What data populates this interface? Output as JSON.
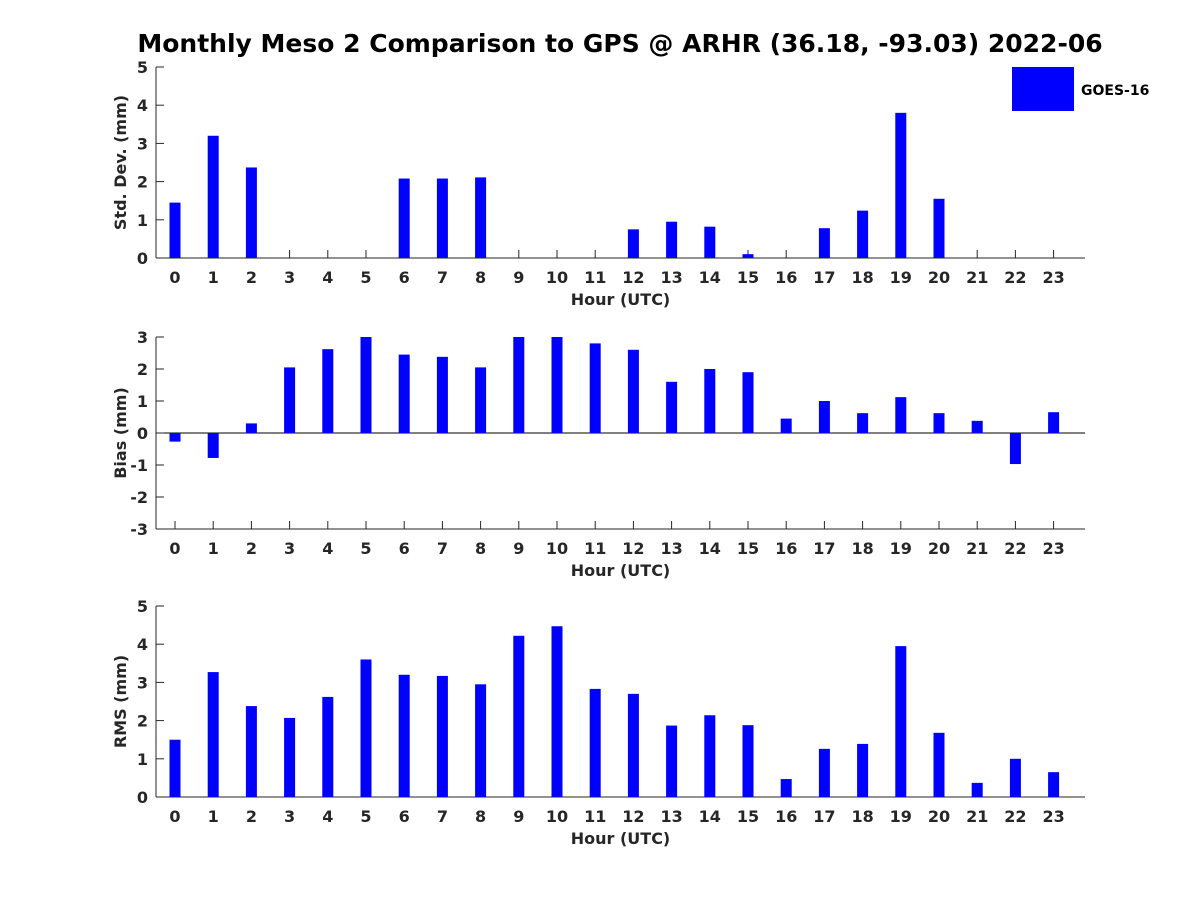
{
  "title": "Monthly Meso 2 Comparison to GPS @ ARHR (36.18, -93.03) 2022-06",
  "colors": {
    "bar": "#0000ff",
    "axis": "#262626"
  },
  "legend": {
    "label": "GOES-16",
    "placement": "top-right"
  },
  "chart_data": [
    {
      "type": "bar",
      "xlabel": "Hour (UTC)",
      "ylabel": "Std. Dev. (mm)",
      "ylim": [
        0,
        5
      ],
      "yticks": [
        0,
        1,
        2,
        3,
        4,
        5
      ],
      "categories": [
        "0",
        "1",
        "2",
        "3",
        "4",
        "5",
        "6",
        "7",
        "8",
        "9",
        "10",
        "11",
        "12",
        "13",
        "14",
        "15",
        "16",
        "17",
        "18",
        "19",
        "20",
        "21",
        "22",
        "23"
      ],
      "series": [
        {
          "name": "GOES-16",
          "values": [
            1.45,
            3.2,
            2.37,
            null,
            null,
            null,
            2.08,
            2.08,
            2.11,
            null,
            null,
            null,
            0.75,
            0.95,
            0.82,
            0.1,
            null,
            0.78,
            1.24,
            3.8,
            1.55,
            null,
            null,
            null
          ]
        }
      ]
    },
    {
      "type": "bar",
      "xlabel": "Hour (UTC)",
      "ylabel": "Bias (mm)",
      "ylim": [
        -3,
        3
      ],
      "yticks": [
        -3,
        -2,
        -1,
        0,
        1,
        2,
        3
      ],
      "categories": [
        "0",
        "1",
        "2",
        "3",
        "4",
        "5",
        "6",
        "7",
        "8",
        "9",
        "10",
        "11",
        "12",
        "13",
        "14",
        "15",
        "16",
        "17",
        "18",
        "19",
        "20",
        "21",
        "22",
        "23"
      ],
      "series": [
        {
          "name": "GOES-16",
          "values": [
            -0.27,
            -0.78,
            0.3,
            2.05,
            2.62,
            3.0,
            2.45,
            2.38,
            2.05,
            3.0,
            3.0,
            2.8,
            2.6,
            1.6,
            2.0,
            1.9,
            0.45,
            1.0,
            0.62,
            1.12,
            0.62,
            0.38,
            -0.97,
            0.65
          ]
        }
      ]
    },
    {
      "type": "bar",
      "xlabel": "Hour (UTC)",
      "ylabel": "RMS (mm)",
      "ylim": [
        0,
        5
      ],
      "yticks": [
        0,
        1,
        2,
        3,
        4,
        5
      ],
      "categories": [
        "0",
        "1",
        "2",
        "3",
        "4",
        "5",
        "6",
        "7",
        "8",
        "9",
        "10",
        "11",
        "12",
        "13",
        "14",
        "15",
        "16",
        "17",
        "18",
        "19",
        "20",
        "21",
        "22",
        "23"
      ],
      "series": [
        {
          "name": "GOES-16",
          "values": [
            1.5,
            3.27,
            2.38,
            2.07,
            2.62,
            3.6,
            3.2,
            3.17,
            2.95,
            4.22,
            4.47,
            2.83,
            2.7,
            1.87,
            2.14,
            1.88,
            0.47,
            1.26,
            1.39,
            3.95,
            1.68,
            0.37,
            1.0,
            0.65
          ]
        }
      ]
    }
  ]
}
